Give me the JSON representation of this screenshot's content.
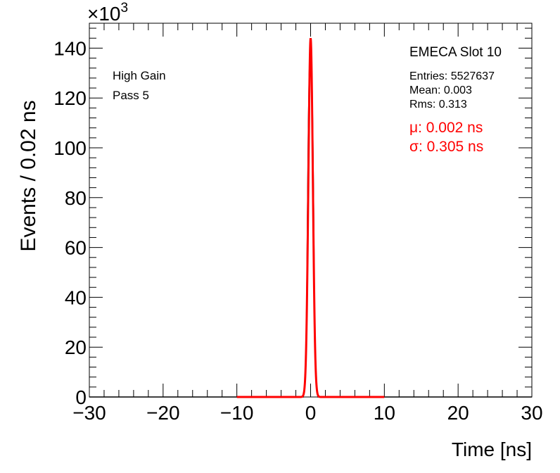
{
  "chart_data": {
    "type": "line",
    "xlabel": "Time [ns]",
    "ylabel": "Events / 0.02 ns",
    "y_multiplier": "×10",
    "y_multiplier_exp": "3",
    "xlim": [
      -30,
      30
    ],
    "ylim": [
      0,
      150
    ],
    "xticks": [
      -30,
      -20,
      -10,
      0,
      10,
      20,
      30
    ],
    "yticks": [
      0,
      20,
      40,
      60,
      80,
      100,
      120,
      140
    ],
    "xtick_labels": [
      "−30",
      "−20",
      "−10",
      "0",
      "10",
      "20",
      "30"
    ],
    "ytick_labels": [
      "0",
      "20",
      "40",
      "60",
      "80",
      "100",
      "120",
      "140"
    ],
    "grid": false,
    "series": [
      {
        "kind": "histogram",
        "color": "#000000",
        "x": [
          -1.0,
          -0.8,
          -0.6,
          -0.5,
          -0.4,
          -0.3,
          -0.2,
          -0.1,
          -0.05,
          0.0,
          0.05,
          0.1,
          0.2,
          0.3,
          0.4,
          0.5,
          0.6,
          0.8,
          1.0
        ],
        "y": [
          0.5,
          3,
          22,
          48,
          82,
          110,
          128,
          139,
          142,
          144,
          142,
          138,
          127,
          106,
          80,
          45,
          20,
          3,
          0.5
        ]
      },
      {
        "kind": "gaussian-fit",
        "color": "#ff0000",
        "amplitude": 144,
        "mean": 0.002,
        "sigma": 0.305,
        "xrange": [
          -10,
          10
        ]
      }
    ],
    "annotations": {
      "left": [
        "High Gain",
        "Pass 5"
      ],
      "stats_title": "EMECA Slot 10",
      "stats": [
        "Entries: 5527637",
        "Mean: 0.003",
        "Rms: 0.313"
      ],
      "fit": [
        "μ: 0.002 ns",
        "σ: 0.305 ns"
      ]
    }
  },
  "colors": {
    "axis": "#000000",
    "fit": "#ff0000",
    "background": "#ffffff"
  }
}
